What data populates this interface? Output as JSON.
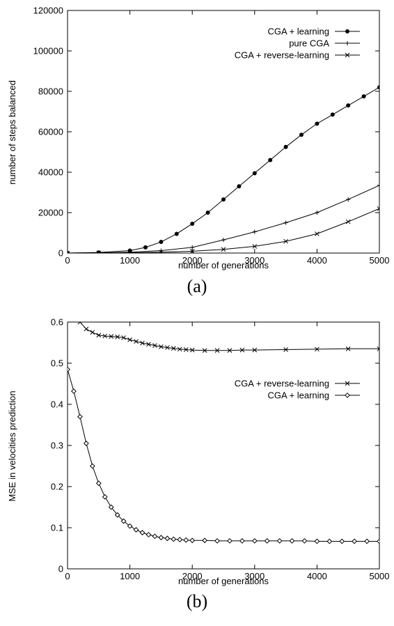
{
  "chart_data": [
    {
      "type": "line",
      "caption": "(a)",
      "xlabel": "number of generations",
      "ylabel": "number of steps balanced",
      "xlim": [
        0,
        5000
      ],
      "ylim": [
        0,
        120000
      ],
      "xticks": [
        0,
        1000,
        2000,
        3000,
        4000,
        5000
      ],
      "yticks": [
        0,
        20000,
        40000,
        60000,
        80000,
        100000,
        120000
      ],
      "grid": false,
      "legend_position": "top-right",
      "series": [
        {
          "name": "CGA + learning",
          "marker": "circle",
          "x": [
            0,
            500,
            1000,
            1250,
            1500,
            1750,
            2000,
            2250,
            2500,
            2750,
            3000,
            3250,
            3500,
            3750,
            4000,
            4250,
            4500,
            4750,
            5000
          ],
          "y": [
            0,
            300,
            1200,
            2800,
            5500,
            9500,
            14500,
            20000,
            26500,
            33000,
            39500,
            46000,
            52500,
            58500,
            64000,
            68500,
            73000,
            77500,
            82000
          ]
        },
        {
          "name": "pure CGA",
          "marker": "plus",
          "x": [
            0,
            500,
            1000,
            1500,
            2000,
            2500,
            3000,
            3500,
            4000,
            4500,
            5000
          ],
          "y": [
            0,
            100,
            400,
            1200,
            2800,
            6500,
            10500,
            15000,
            20000,
            26500,
            33500
          ]
        },
        {
          "name": "CGA + reverse-learning",
          "marker": "x",
          "x": [
            0,
            500,
            1000,
            1500,
            2000,
            2500,
            3000,
            3500,
            4000,
            4500,
            5000
          ],
          "y": [
            0,
            50,
            150,
            400,
            900,
            1800,
            3300,
            5800,
            9500,
            15500,
            22000
          ]
        }
      ]
    },
    {
      "type": "line",
      "caption": "(b)",
      "xlabel": "number of generations",
      "ylabel": "MSE in velocities prediction",
      "xlim": [
        0,
        5000
      ],
      "ylim": [
        0,
        0.6
      ],
      "xticks": [
        0,
        1000,
        2000,
        3000,
        4000,
        5000
      ],
      "yticks": [
        0,
        0.1,
        0.2,
        0.3,
        0.4,
        0.5,
        0.6
      ],
      "grid": false,
      "legend_position": "right",
      "series": [
        {
          "name": "CGA + reverse-learning",
          "marker": "x",
          "x": [
            100,
            200,
            300,
            400,
            500,
            600,
            700,
            800,
            900,
            1000,
            1100,
            1200,
            1300,
            1400,
            1500,
            1600,
            1700,
            1800,
            1900,
            2000,
            2200,
            2400,
            2600,
            2800,
            3000,
            3500,
            4000,
            4500,
            5000
          ],
          "y": [
            0.64,
            0.6,
            0.583,
            0.575,
            0.568,
            0.566,
            0.565,
            0.564,
            0.562,
            0.557,
            0.553,
            0.549,
            0.546,
            0.543,
            0.54,
            0.538,
            0.536,
            0.534,
            0.533,
            0.532,
            0.531,
            0.531,
            0.531,
            0.532,
            0.532,
            0.533,
            0.534,
            0.535,
            0.535
          ]
        },
        {
          "name": "CGA + learning",
          "marker": "diamond",
          "x": [
            0,
            100,
            200,
            300,
            400,
            500,
            600,
            700,
            800,
            900,
            1000,
            1100,
            1200,
            1300,
            1400,
            1500,
            1600,
            1700,
            1800,
            1900,
            2000,
            2200,
            2400,
            2600,
            2800,
            3000,
            3200,
            3400,
            3600,
            3800,
            4000,
            4200,
            4400,
            4600,
            4800,
            5000
          ],
          "y": [
            0.485,
            0.432,
            0.37,
            0.305,
            0.25,
            0.208,
            0.175,
            0.15,
            0.131,
            0.116,
            0.104,
            0.095,
            0.088,
            0.083,
            0.079,
            0.076,
            0.074,
            0.072,
            0.071,
            0.07,
            0.069,
            0.069,
            0.068,
            0.068,
            0.068,
            0.068,
            0.068,
            0.068,
            0.068,
            0.068,
            0.067,
            0.067,
            0.067,
            0.067,
            0.067,
            0.067
          ]
        }
      ]
    }
  ]
}
